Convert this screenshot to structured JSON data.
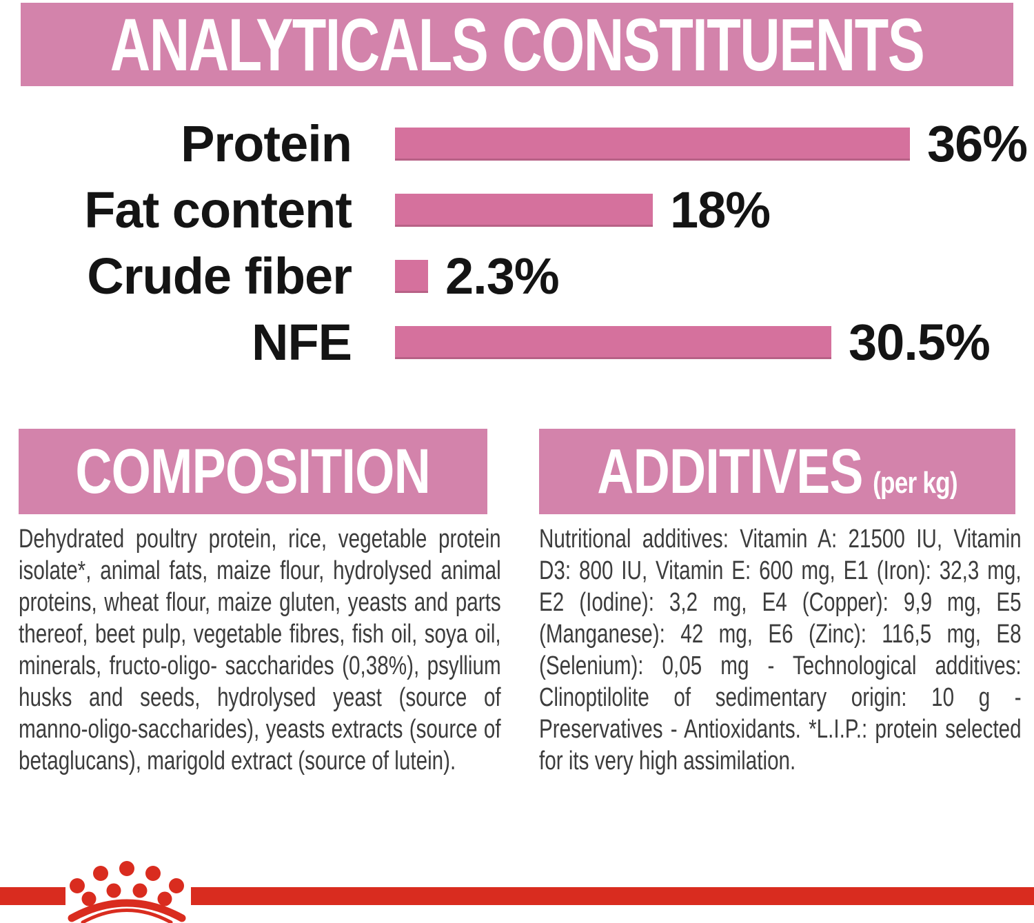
{
  "colors": {
    "pink_banner": "#d383ab",
    "pink_bar": "#d5719d",
    "red": "#d92c1f",
    "heading_text": "#ffffff",
    "label_text": "#141414",
    "body_text": "#3c3c3c",
    "background": "#ffffff"
  },
  "analyticals": {
    "title": "ANALYTICALS CONSTITUENTS"
  },
  "chart_data": {
    "type": "bar",
    "orientation": "horizontal",
    "title": "ANALYTICALS CONSTITUENTS",
    "categories": [
      "Protein",
      "Fat content",
      "Crude fiber",
      "NFE"
    ],
    "values": [
      36,
      18,
      2.3,
      30.5
    ],
    "value_labels": [
      "36%",
      "18%",
      "2.3%",
      "30.5%"
    ],
    "unit": "%",
    "xlim": [
      0,
      36
    ],
    "grid": false,
    "legend": null,
    "bar_color": "#d5719d",
    "value_label_position": "right-of-bar"
  },
  "composition": {
    "title": "COMPOSITION",
    "body": "Dehydrated poultry protein, rice, vegetable protein isolate*, animal fats, maize flour, hydrolysed animal proteins, wheat flour, maize gluten, yeasts and parts thereof, beet pulp, vegetable fibres, fish oil, soya oil, minerals, fructo-oligo- saccharides (0,38%), psyllium husks and seeds, hydrolysed yeast (source of manno-oligo-saccharides), yeasts extracts (source of betaglucans), marigold extract (source of lutein)."
  },
  "additives": {
    "title": "ADDITIVES",
    "title_suffix": "(per kg)",
    "body": "Nutritional additives: Vitamin A: 21500 IU, Vitamin D3: 800 IU, Vitamin E: 600 mg, E1 (Iron): 32,3 mg, E2 (Iodine): 3,2 mg, E4 (Copper): 9,9 mg, E5 (Manganese): 42 mg, E6 (Zinc): 116,5 mg, E8 (Selenium): 0,05 mg - Technological additives: Clinoptilolite of sedimentary origin: 10 g - Preservatives - Antioxidants. *L.I.P.: protein selected for its very high assimilation.",
    "body_lead": "Nutritional additives:"
  },
  "footer": {
    "logo_icon": "royal-canin-crown-icon"
  }
}
